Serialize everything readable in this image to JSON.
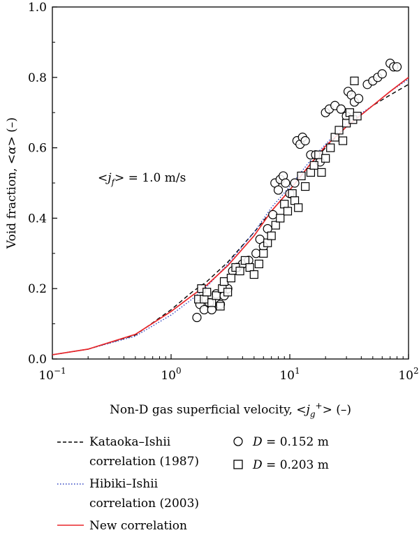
{
  "chart_data": {
    "type": "scatter",
    "xscale": "log",
    "xlim": [
      0.1,
      100
    ],
    "ylim": [
      0.0,
      1.0
    ],
    "xticks": [
      {
        "value": 0.1,
        "base": "10",
        "exp": "−1"
      },
      {
        "value": 1,
        "base": "10",
        "exp": "0"
      },
      {
        "value": 10,
        "base": "10",
        "exp": "1"
      },
      {
        "value": 100,
        "base": "10",
        "exp": "2"
      }
    ],
    "yticks": [
      {
        "value": 0.0,
        "label": "0.0"
      },
      {
        "value": 0.2,
        "label": "0.2"
      },
      {
        "value": 0.4,
        "label": "0.4"
      },
      {
        "value": 0.6,
        "label": "0.6"
      },
      {
        "value": 0.8,
        "label": "0.8"
      },
      {
        "value": 1.0,
        "label": "1.0"
      }
    ],
    "xlabel": {
      "prefix": "Non-D gas superficial velocity, <",
      "var": "j",
      "sub": "g",
      "sup": "+",
      "suffix": "> (–)"
    },
    "ylabel": {
      "prefix": "Void fraction, <",
      "var": "α",
      "suffix": "> (–)"
    },
    "annotation": {
      "prefix": "<",
      "var": "j",
      "sub": "f",
      "suffix": "> = 1.0 m/s"
    },
    "grid": false,
    "legend_placement": "bottom",
    "lines": [
      {
        "name_line1": "Kataoka–Ishii",
        "name_line2": "correlation (1987)",
        "style": "dashed",
        "color": "#000000",
        "x": [
          0.1,
          0.2,
          0.5,
          1.0,
          1.5,
          2,
          3,
          5,
          7,
          10,
          15,
          20,
          30,
          50,
          70,
          100
        ],
        "y": [
          0.012,
          0.028,
          0.068,
          0.14,
          0.19,
          0.22,
          0.275,
          0.36,
          0.42,
          0.48,
          0.555,
          0.6,
          0.66,
          0.72,
          0.75,
          0.78
        ]
      },
      {
        "name_line1": "Hibiki–Ishii",
        "name_line2": "correlation (2003)",
        "style": "dotted",
        "color": "#2b3fbf",
        "x": [
          0.1,
          0.2,
          0.5,
          1.0,
          1.5,
          2,
          3,
          5,
          7,
          10,
          15,
          20,
          30,
          50,
          70,
          100
        ],
        "y": [
          0.012,
          0.028,
          0.065,
          0.125,
          0.17,
          0.205,
          0.27,
          0.36,
          0.43,
          0.49,
          0.565,
          0.61,
          0.67,
          0.72,
          0.76,
          0.795
        ]
      },
      {
        "name_line1": "New correlation",
        "style": "solid",
        "color": "#e8262a",
        "x": [
          0.1,
          0.2,
          0.5,
          1.0,
          1.5,
          2,
          3,
          5,
          7,
          10,
          15,
          20,
          30,
          50,
          70,
          100
        ],
        "y": [
          0.012,
          0.028,
          0.07,
          0.135,
          0.18,
          0.21,
          0.265,
          0.35,
          0.42,
          0.48,
          0.555,
          0.605,
          0.66,
          0.72,
          0.76,
          0.8
        ]
      }
    ],
    "series": [
      {
        "name_var": "D",
        "name_text": " = 0.152 m",
        "marker": "circle",
        "points": [
          [
            1.65,
            0.118
          ],
          [
            1.75,
            0.155
          ],
          [
            1.9,
            0.14
          ],
          [
            2.1,
            0.16
          ],
          [
            2.2,
            0.14
          ],
          [
            2.4,
            0.185
          ],
          [
            2.6,
            0.155
          ],
          [
            2.8,
            0.18
          ],
          [
            3.0,
            0.2
          ],
          [
            3.3,
            0.25
          ],
          [
            3.6,
            0.26
          ],
          [
            4.0,
            0.27
          ],
          [
            4.5,
            0.28
          ],
          [
            5.2,
            0.3
          ],
          [
            5.6,
            0.34
          ],
          [
            6.0,
            0.32
          ],
          [
            6.5,
            0.37
          ],
          [
            7.2,
            0.41
          ],
          [
            7.5,
            0.5
          ],
          [
            8.0,
            0.48
          ],
          [
            8.3,
            0.51
          ],
          [
            8.8,
            0.52
          ],
          [
            9.2,
            0.5
          ],
          [
            10.0,
            0.47
          ],
          [
            11.0,
            0.5
          ],
          [
            11.5,
            0.62
          ],
          [
            12.2,
            0.61
          ],
          [
            12.8,
            0.63
          ],
          [
            13.5,
            0.62
          ],
          [
            15.0,
            0.58
          ],
          [
            16.5,
            0.58
          ],
          [
            18.0,
            0.56
          ],
          [
            20.0,
            0.7
          ],
          [
            21.5,
            0.71
          ],
          [
            24.0,
            0.72
          ],
          [
            27.0,
            0.71
          ],
          [
            30.0,
            0.69
          ],
          [
            31.0,
            0.76
          ],
          [
            33.0,
            0.75
          ],
          [
            35.0,
            0.73
          ],
          [
            38.0,
            0.74
          ],
          [
            45.0,
            0.78
          ],
          [
            50.0,
            0.79
          ],
          [
            55.0,
            0.8
          ],
          [
            60.0,
            0.81
          ],
          [
            70.0,
            0.84
          ],
          [
            75.0,
            0.83
          ],
          [
            80.0,
            0.83
          ]
        ]
      },
      {
        "name_var": "D",
        "name_text": " = 0.203 m",
        "marker": "square",
        "points": [
          [
            1.7,
            0.17
          ],
          [
            1.8,
            0.2
          ],
          [
            1.9,
            0.17
          ],
          [
            2.0,
            0.19
          ],
          [
            2.2,
            0.16
          ],
          [
            2.4,
            0.18
          ],
          [
            2.6,
            0.15
          ],
          [
            2.7,
            0.2
          ],
          [
            2.8,
            0.22
          ],
          [
            3.0,
            0.19
          ],
          [
            3.2,
            0.23
          ],
          [
            3.5,
            0.26
          ],
          [
            3.8,
            0.25
          ],
          [
            4.2,
            0.28
          ],
          [
            4.6,
            0.26
          ],
          [
            5.0,
            0.24
          ],
          [
            5.5,
            0.27
          ],
          [
            6.0,
            0.3
          ],
          [
            6.5,
            0.33
          ],
          [
            7.0,
            0.35
          ],
          [
            7.6,
            0.38
          ],
          [
            8.3,
            0.4
          ],
          [
            9.0,
            0.44
          ],
          [
            9.6,
            0.42
          ],
          [
            10.5,
            0.47
          ],
          [
            11.0,
            0.45
          ],
          [
            11.8,
            0.43
          ],
          [
            12.5,
            0.52
          ],
          [
            13.5,
            0.49
          ],
          [
            15.0,
            0.53
          ],
          [
            16.0,
            0.55
          ],
          [
            17.5,
            0.58
          ],
          [
            18.5,
            0.53
          ],
          [
            20.0,
            0.57
          ],
          [
            22.0,
            0.6
          ],
          [
            24.0,
            0.63
          ],
          [
            26.0,
            0.65
          ],
          [
            28.0,
            0.62
          ],
          [
            30.0,
            0.67
          ],
          [
            32.0,
            0.7
          ],
          [
            34.0,
            0.68
          ],
          [
            35.0,
            0.79
          ],
          [
            37.0,
            0.69
          ]
        ]
      }
    ]
  }
}
